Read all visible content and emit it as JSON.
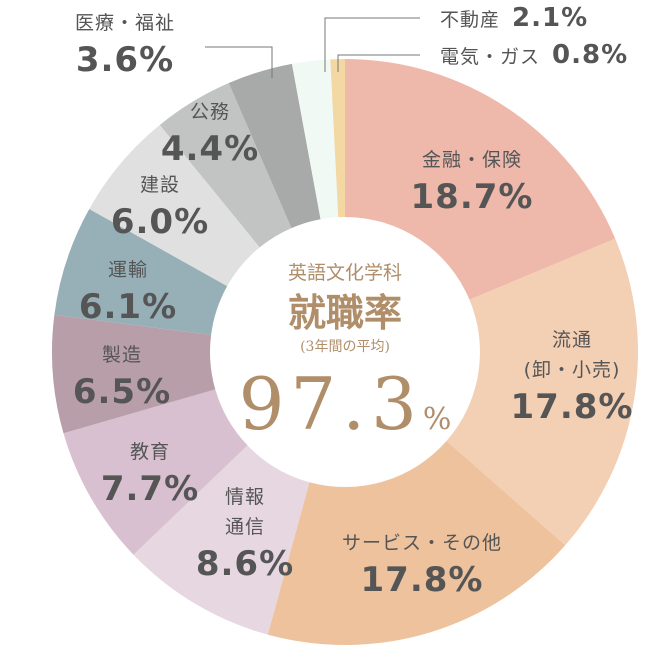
{
  "chart_data": {
    "type": "donut",
    "center": {
      "department": "英語文化学科",
      "title": "就職率",
      "note": "(3年間の平均)",
      "rate": "97.3",
      "rate_unit": "%"
    },
    "categories": [
      "金融・保険",
      "流通\n(卸・小売)",
      "サービス・その他",
      "情報\n通信",
      "教育",
      "製造",
      "運輸",
      "建設",
      "公務",
      "医療・福祉",
      "不動産",
      "電気・ガス"
    ],
    "values": [
      18.7,
      17.8,
      17.8,
      8.6,
      7.7,
      6.5,
      6.1,
      6.0,
      4.4,
      3.6,
      2.1,
      0.8
    ],
    "value_labels": [
      "18.7%",
      "17.8%",
      "17.8%",
      "8.6%",
      "7.7%",
      "6.5%",
      "6.1%",
      "6.0%",
      "4.4%",
      "3.6%",
      "2.1%",
      "0.8%"
    ],
    "colors": [
      "#eeb9ab",
      "#f3cfb4",
      "#edc29d",
      "#e7d7e1",
      "#d8c0d0",
      "#b79ea9",
      "#97afb6",
      "#dfe0df",
      "#c2c4c3",
      "#a8aaa9",
      "#f1f9f5",
      "#f3d8a4"
    ]
  }
}
